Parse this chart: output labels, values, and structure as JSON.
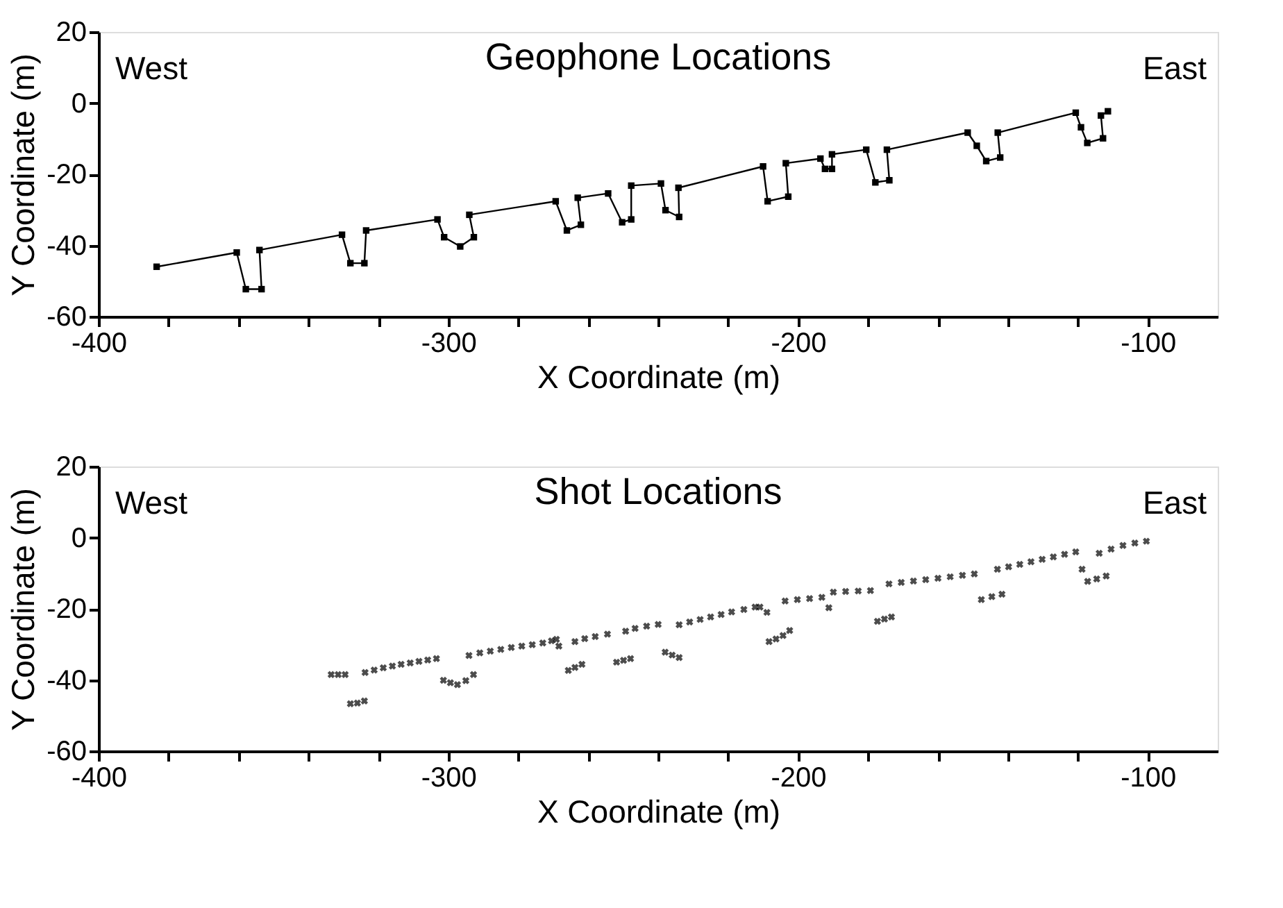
{
  "chart_data": [
    {
      "type": "line",
      "title": "Geophone Locations",
      "xlabel": "X Coordinate (m)",
      "ylabel": "Y Coordinate (m)",
      "annotations": [
        "West",
        "East"
      ],
      "marker": "square",
      "x": [
        -383.4,
        -360.5,
        -357.9,
        -353.4,
        -354,
        -330.4,
        -328,
        -324,
        -323.5,
        -303.1,
        -301.2,
        -296.6,
        -292.7,
        -294,
        -269.3,
        -266.1,
        -262.1,
        -263,
        -254.3,
        -250.3,
        -247.7,
        -247.7,
        -239.2,
        -237.9,
        -234,
        -234.2,
        -210,
        -208.7,
        -202.8,
        -203.5,
        -193.6,
        -192.3,
        -190.3,
        -190.3,
        -180.5,
        -177.9,
        -173.9,
        -174.6,
        -151.5,
        -148.9,
        -146.2,
        -142.2,
        -142.9,
        -120.6,
        -119.1,
        -117.3,
        -112.8,
        -113.4,
        -111.4
      ],
      "series": [
        {
          "color": "#000000",
          "values": [
            -46,
            -42,
            -52.3,
            -52.3,
            -41.3,
            -37,
            -45,
            -45,
            -35.8,
            -32.7,
            -37.7,
            -40.3,
            -37.7,
            -31.4,
            -27.6,
            -35.8,
            -34.2,
            -26.6,
            -25.4,
            -33.5,
            -32.7,
            -23.2,
            -22.6,
            -30.1,
            -32,
            -23.8,
            -17.8,
            -27.6,
            -26.3,
            -16.9,
            -15.6,
            -18.5,
            -18.5,
            -14.4,
            -13.1,
            -22.3,
            -21.7,
            -13.1,
            -8.3,
            -12,
            -16.3,
            -15.3,
            -8.3,
            -2.7,
            -6.8,
            -11.2,
            -9.9,
            -3.5,
            -2.3
          ]
        }
      ],
      "xlim": [
        -400,
        -80
      ],
      "ylim": [
        -60,
        20
      ],
      "xticks": [
        -400,
        {
          "value": -380,
          "label": null
        },
        {
          "value": -360,
          "label": null
        },
        {
          "value": -340,
          "label": null
        },
        {
          "value": -320,
          "label": null
        },
        -300,
        {
          "value": -280,
          "label": null
        },
        {
          "value": -260,
          "label": null
        },
        {
          "value": -240,
          "label": null
        },
        {
          "value": -220,
          "label": null
        },
        -200,
        {
          "value": -180,
          "label": null
        },
        {
          "value": -160,
          "label": null
        },
        {
          "value": -140,
          "label": null
        },
        {
          "value": -120,
          "label": null
        },
        -100
      ],
      "yticks": [
        -60,
        -40,
        -20,
        0,
        20
      ]
    },
    {
      "type": "scatter",
      "title": "Shot Locations",
      "xlabel": "X Coordinate (m)",
      "ylabel": "Y Coordinate (m)",
      "annotations": [
        "West",
        "East"
      ],
      "marker": "cross",
      "x": [
        -333.5,
        -331.5,
        -329.5,
        -328,
        -326,
        -324,
        -323.8,
        -321.2,
        -318.6,
        -316,
        -313.5,
        -310.9,
        -308.4,
        -305.9,
        -303.4,
        -301.4,
        -299.4,
        -297.4,
        -295,
        -292.8,
        -294.1,
        -291,
        -288,
        -285,
        -282,
        -279,
        -276,
        -273,
        -270.5,
        -269.1,
        -268.4,
        -265.7,
        -263.8,
        -261.8,
        -263.8,
        -261,
        -258,
        -254.5,
        -251.9,
        -249.9,
        -247.9,
        -249.3,
        -246.6,
        -243.3,
        -240,
        -238,
        -236,
        -234,
        -234,
        -231,
        -228,
        -225,
        -222,
        -219,
        -215.5,
        -212.3,
        -210.9,
        -208.9,
        -208.3,
        -206.3,
        -204.3,
        -202.4,
        -203.7,
        -200.2,
        -196.7,
        -193.2,
        -191.2,
        -189.9,
        -186.4,
        -182.8,
        -179.3,
        -177.3,
        -175.3,
        -173.3,
        -174,
        -170.5,
        -167,
        -163.5,
        -160,
        -156.5,
        -153,
        -149.6,
        -147.6,
        -144.6,
        -141.7,
        -143,
        -139.8,
        -136.6,
        -133.4,
        -130.2,
        -127,
        -123.8,
        -120.6,
        -118.8,
        -117.2,
        -114.6,
        -111.9,
        -113.9,
        -110.5,
        -107.1,
        -103.7,
        -100.4
      ],
      "series": [
        {
          "color": "#000000",
          "values": [
            -38.5,
            -38.5,
            -38.5,
            -46.7,
            -46.5,
            -45.9,
            -37.9,
            -37.2,
            -36.6,
            -36.1,
            -35.6,
            -35.2,
            -34.8,
            -34.4,
            -34.0,
            -40.1,
            -40.8,
            -41.3,
            -40.2,
            -38.5,
            -33.1,
            -32.4,
            -31.9,
            -31.4,
            -30.9,
            -30.5,
            -30.1,
            -29.6,
            -29,
            -28.6,
            -30.5,
            -37.3,
            -36.5,
            -35.6,
            -29.2,
            -28.4,
            -27.8,
            -27.1,
            -35,
            -34.5,
            -34,
            -26.3,
            -25.5,
            -24.9,
            -24.4,
            -32.2,
            -33,
            -33.7,
            -24.5,
            -23.7,
            -23,
            -22.3,
            -21.6,
            -20.9,
            -20.2,
            -19.5,
            -19.5,
            -21,
            -29.2,
            -28.5,
            -27.5,
            -26.1,
            -17.8,
            -17.4,
            -17.1,
            -16.8,
            -19.7,
            -15.3,
            -15.1,
            -15,
            -14.9,
            -23.5,
            -22.9,
            -22.3,
            -13,
            -12.6,
            -12.2,
            -11.8,
            -11.4,
            -11,
            -10.6,
            -10.2,
            -17.4,
            -16.6,
            -15.9,
            -8.9,
            -8.2,
            -7.5,
            -6.8,
            -6.1,
            -5.4,
            -4.7,
            -4.0,
            -8.9,
            -12.3,
            -11.6,
            -10.8,
            -4.4,
            -3.2,
            -2.2,
            -1.5,
            -1.0
          ]
        }
      ],
      "xlim": [
        -400,
        -80
      ],
      "ylim": [
        -60,
        20
      ],
      "xticks": [
        -400,
        {
          "value": -380,
          "label": null
        },
        {
          "value": -360,
          "label": null
        },
        {
          "value": -340,
          "label": null
        },
        {
          "value": -320,
          "label": null
        },
        -300,
        {
          "value": -280,
          "label": null
        },
        {
          "value": -260,
          "label": null
        },
        {
          "value": -240,
          "label": null
        },
        {
          "value": -220,
          "label": null
        },
        -200,
        {
          "value": -180,
          "label": null
        },
        {
          "value": -160,
          "label": null
        },
        {
          "value": -140,
          "label": null
        },
        {
          "value": -120,
          "label": null
        },
        -100
      ],
      "yticks": [
        -60,
        -40,
        -20,
        0,
        20
      ]
    }
  ]
}
